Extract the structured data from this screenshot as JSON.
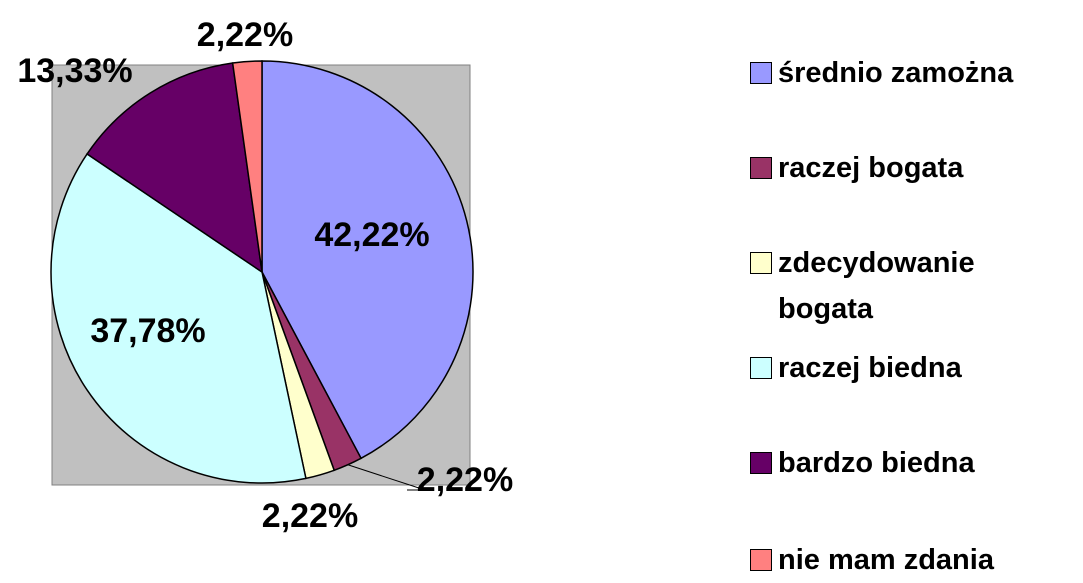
{
  "chart_data": {
    "type": "pie",
    "categories": [
      "średnio zamożna",
      "raczej bogata",
      "zdecydowanie bogata",
      "raczej biedna",
      "bardzo biedna",
      "nie mam zdania"
    ],
    "values": [
      42.22,
      2.22,
      2.22,
      37.78,
      13.33,
      2.22
    ],
    "value_labels": [
      "42,22%",
      "2,22%",
      "2,22%",
      "37,78%",
      "13,33%",
      "2,22%"
    ],
    "colors": [
      "#9999ff",
      "#993366",
      "#ffffcc",
      "#ccffff",
      "#660066",
      "#ff8080"
    ],
    "legend": "right"
  }
}
